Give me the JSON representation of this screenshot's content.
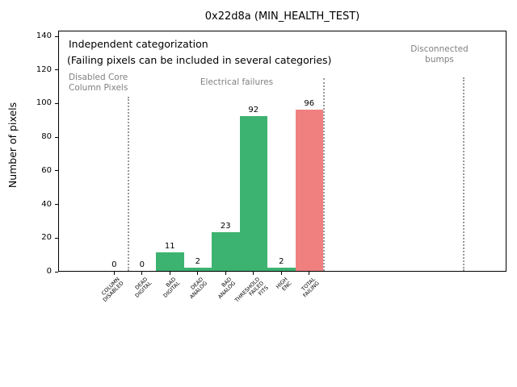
{
  "chart_data": {
    "type": "bar",
    "title": "0x22d8a (MIN_HEALTH_TEST)",
    "xlabel": "",
    "ylabel": "Number of pixels",
    "ylim": [
      0,
      143
    ],
    "yticks": [
      0,
      20,
      40,
      60,
      80,
      100,
      120,
      140
    ],
    "grid": false,
    "legend_position": "none",
    "categories": [
      "COLUMN\nDISABLED",
      "DEAD\nDIGITAL",
      "BAD\nDIGITAL",
      "DEAD\nANALOG",
      "BAD\nANALOG",
      "THRESHOLD\nFAILED\nFITS",
      "HIGH\nENC",
      "TOTAL\nFAILING"
    ],
    "values": [
      0,
      0,
      11,
      2,
      23,
      92,
      2,
      96
    ],
    "bar_colors": [
      "#3cb371",
      "#3cb371",
      "#3cb371",
      "#3cb371",
      "#3cb371",
      "#3cb371",
      "#3cb371",
      "#f08080"
    ],
    "annotations": {
      "note_line1": "Independent categorization",
      "note_line2": "(Failing pixels can be included in several categories)"
    },
    "section_labels": [
      {
        "text": "Disabled Core\nColumn Pixels",
        "align": "left"
      },
      {
        "text": "Electrical failures",
        "align": "center"
      },
      {
        "text": "Disconnected\nbumps",
        "align": "center"
      }
    ],
    "colors": {
      "bar_green": "#3cb371",
      "bar_red": "#f08080",
      "gray_text": "#808080",
      "separator": "#999999",
      "text": "#000000",
      "background": "#ffffff"
    }
  }
}
